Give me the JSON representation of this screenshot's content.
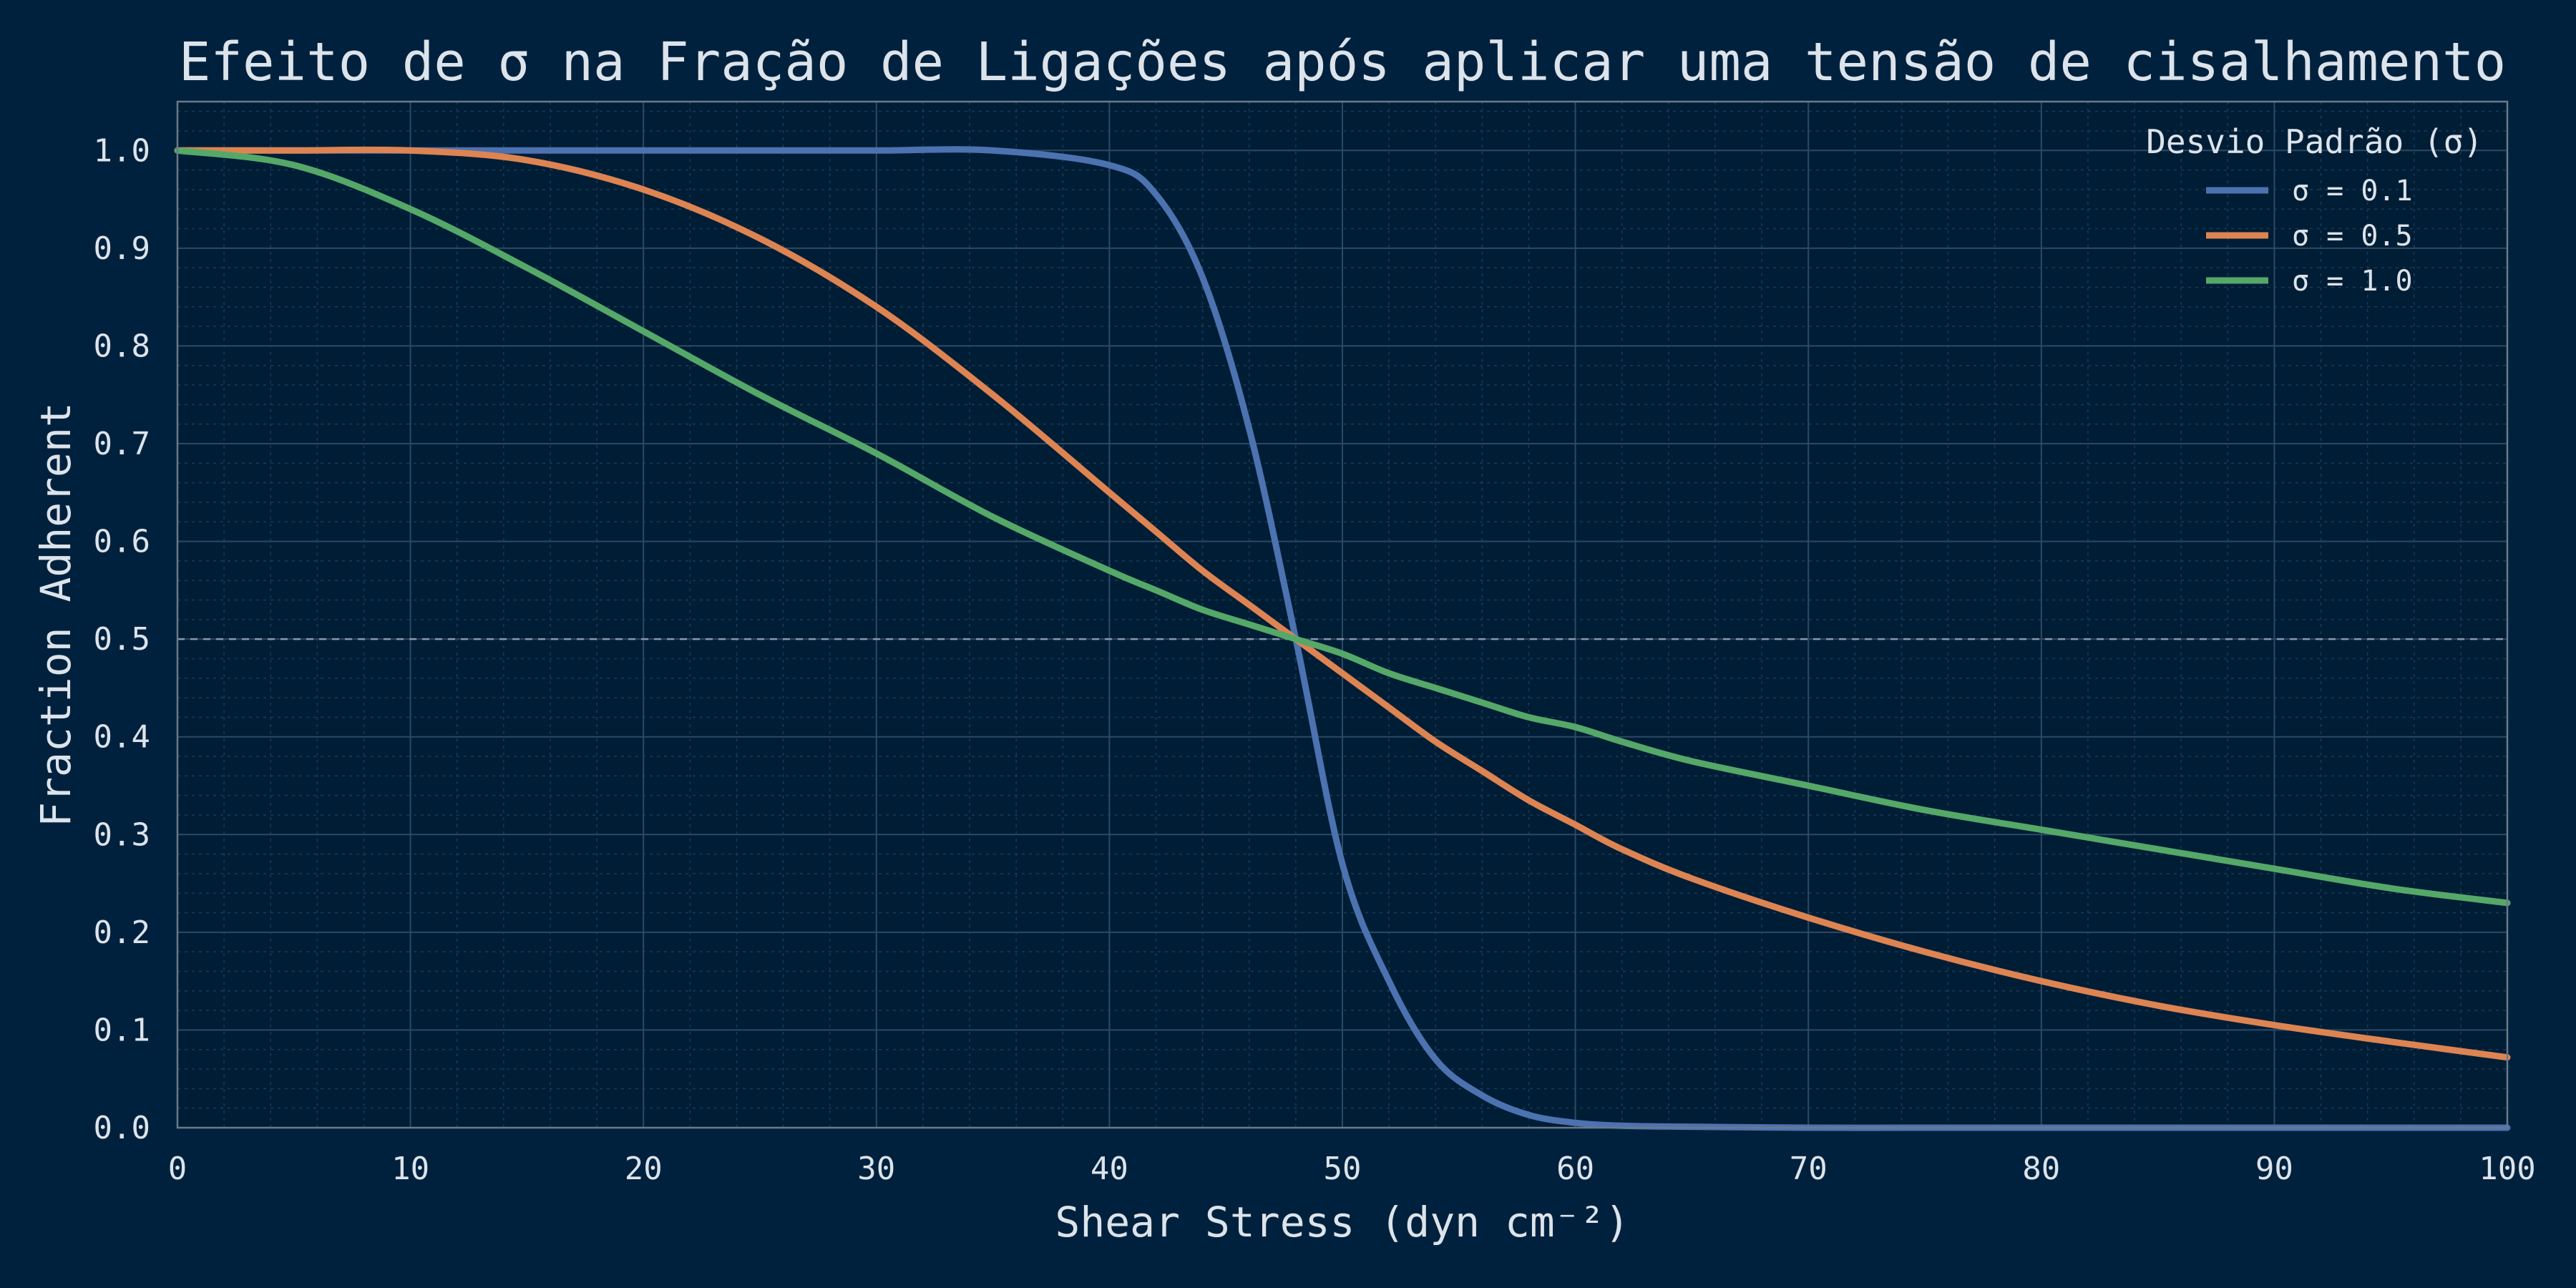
{
  "chart_data": {
    "type": "line",
    "title": "Efeito de σ na Fração de Ligações após aplicar uma tensão de cisalhamento",
    "xlabel": "Shear Stress (dyn cm⁻²)",
    "ylabel": "Fraction Adherent",
    "xlim": [
      0,
      100
    ],
    "ylim": [
      0,
      1.05
    ],
    "xticks": [
      "0",
      "10",
      "20",
      "30",
      "40",
      "50",
      "60",
      "70",
      "80",
      "90",
      "100"
    ],
    "yticks": [
      "0.0",
      "0.1",
      "0.2",
      "0.3",
      "0.4",
      "0.5",
      "0.6",
      "0.7",
      "0.8",
      "0.9",
      "1.0"
    ],
    "grid": true,
    "reference_line": {
      "y": 0.5,
      "style": "dashed"
    },
    "legend": {
      "title": "Desvio Padrão (σ)",
      "placement": "top-right"
    },
    "x": [
      0,
      5,
      10,
      15,
      20,
      25,
      30,
      35,
      40,
      42,
      44,
      46,
      48,
      50,
      52,
      54,
      56,
      58,
      60,
      62,
      65,
      70,
      75,
      80,
      85,
      90,
      95,
      100
    ],
    "series": [
      {
        "name": "σ = 0.1",
        "color": "#4c72b0",
        "values": [
          1.0,
          1.0,
          1.0,
          1.0,
          1.0,
          1.0,
          1.0,
          1.0,
          0.985,
          0.955,
          0.87,
          0.715,
          0.5,
          0.27,
          0.15,
          0.07,
          0.033,
          0.013,
          0.005,
          0.002,
          0.001,
          0.0,
          0.0,
          0.0,
          0.0,
          0.0,
          0.0,
          0.0
        ]
      },
      {
        "name": "σ = 0.5",
        "color": "#dd8452",
        "values": [
          1.0,
          1.0,
          1.0,
          0.99,
          0.96,
          0.91,
          0.84,
          0.75,
          0.65,
          0.61,
          0.57,
          0.535,
          0.5,
          0.465,
          0.43,
          0.395,
          0.365,
          0.335,
          0.31,
          0.285,
          0.255,
          0.215,
          0.18,
          0.15,
          0.125,
          0.105,
          0.088,
          0.072
        ]
      },
      {
        "name": "σ = 1.0",
        "color": "#55a868",
        "values": [
          1.0,
          0.985,
          0.94,
          0.88,
          0.815,
          0.75,
          0.69,
          0.625,
          0.57,
          0.55,
          0.53,
          0.515,
          0.5,
          0.485,
          0.465,
          0.45,
          0.435,
          0.42,
          0.41,
          0.395,
          0.375,
          0.35,
          0.325,
          0.305,
          0.285,
          0.265,
          0.245,
          0.23
        ]
      }
    ]
  }
}
